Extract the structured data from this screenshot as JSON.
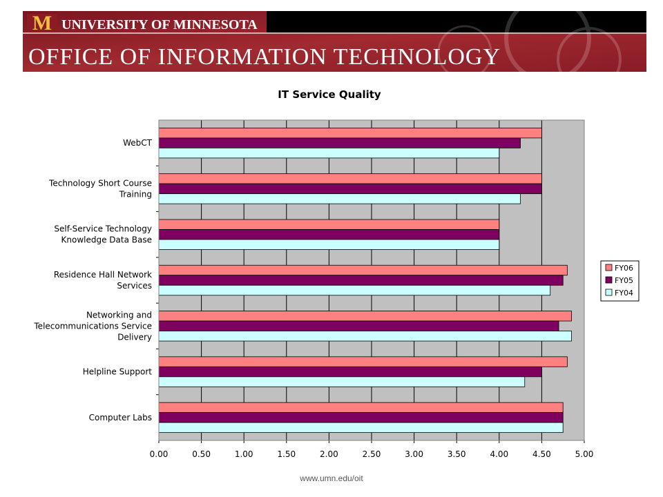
{
  "header": {
    "line1": "UNIVERSITY OF MINNESOTA",
    "line2": "OFFICE OF INFORMATION TECHNOLOGY",
    "brand_color": "#8c1c24",
    "logo_color": "#f0c040",
    "logo_letter": "M"
  },
  "footer": {
    "url": "www.umn.edu/oit"
  },
  "chart_data": {
    "type": "bar",
    "orientation": "horizontal",
    "title": "IT Service Quality",
    "categories": [
      [
        "WebCT"
      ],
      [
        "Technology Short Course",
        "Training"
      ],
      [
        "Self-Service Technology",
        "Knowledge Data Base"
      ],
      [
        "Residence Hall Network",
        "Services"
      ],
      [
        "Networking and",
        "Telecommunications Service",
        "Delivery"
      ],
      [
        "Helpline Support"
      ],
      [
        "Computer Labs"
      ]
    ],
    "series": [
      {
        "name": "FY06",
        "color": "#ff8080",
        "values": [
          4.5,
          4.5,
          4.0,
          4.8,
          4.85,
          4.8,
          4.75
        ]
      },
      {
        "name": "FY05",
        "color": "#800060",
        "values": [
          4.25,
          4.5,
          4.0,
          4.75,
          4.7,
          4.5,
          4.75
        ]
      },
      {
        "name": "FY04",
        "color": "#ccffff",
        "values": [
          4.0,
          4.25,
          4.0,
          4.6,
          4.85,
          4.3,
          4.75
        ]
      }
    ],
    "xlim": [
      0,
      5
    ],
    "xticks": [
      "0.00",
      "0.50",
      "1.00",
      "1.50",
      "2.00",
      "2.50",
      "3.00",
      "3.50",
      "4.00",
      "4.50",
      "5.00"
    ],
    "plot_background": "#c0c0c0",
    "grid": true,
    "legend_position": "right"
  }
}
